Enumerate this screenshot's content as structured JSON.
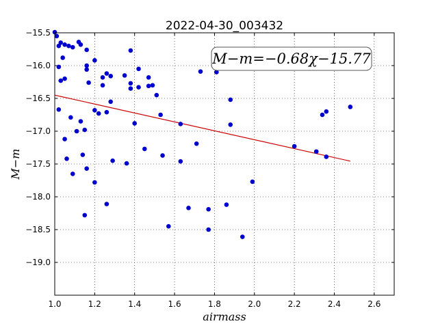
{
  "chart_data": {
    "type": "scatter",
    "title": "2022-04-30_003432",
    "xlabel": "airmass",
    "ylabel": "M−m",
    "xlim": [
      1.0,
      2.7
    ],
    "ylim": [
      -15.5,
      -19.5
    ],
    "y_inverted": true,
    "grid": true,
    "x_ticks": [
      "1.0",
      "1.2",
      "1.4",
      "1.6",
      "1.8",
      "2.0",
      "2.2",
      "2.4",
      "2.6"
    ],
    "y_ticks": [
      "−15.5",
      "−16.0",
      "−16.5",
      "−17.0",
      "−17.5",
      "−18.0",
      "−18.5",
      "−19.0"
    ],
    "annotation": "M−m=−0.68χ−15.77",
    "colors": {
      "points": "#0000cc",
      "fit": "#cc0000"
    },
    "fit_line": {
      "slope": -0.68,
      "intercept": -15.77,
      "x_range": [
        1.0,
        2.48
      ]
    },
    "points": [
      {
        "x": 1.0,
        "y": -15.49
      },
      {
        "x": 1.01,
        "y": -15.55
      },
      {
        "x": 1.02,
        "y": -15.7
      },
      {
        "x": 1.02,
        "y": -16.02
      },
      {
        "x": 1.03,
        "y": -15.65
      },
      {
        "x": 1.05,
        "y": -15.68
      },
      {
        "x": 1.07,
        "y": -15.7
      },
      {
        "x": 1.09,
        "y": -15.72
      },
      {
        "x": 1.12,
        "y": -15.64
      },
      {
        "x": 1.13,
        "y": -15.68
      },
      {
        "x": 1.16,
        "y": -15.76
      },
      {
        "x": 1.04,
        "y": -15.88
      },
      {
        "x": 1.03,
        "y": -16.23
      },
      {
        "x": 1.05,
        "y": -16.2
      },
      {
        "x": 1.02,
        "y": -16.67
      },
      {
        "x": 1.08,
        "y": -16.79
      },
      {
        "x": 1.05,
        "y": -17.12
      },
      {
        "x": 1.06,
        "y": -17.42
      },
      {
        "x": 1.09,
        "y": -17.65
      },
      {
        "x": 1.11,
        "y": -17.0
      },
      {
        "x": 1.13,
        "y": -16.85
      },
      {
        "x": 1.15,
        "y": -16.98
      },
      {
        "x": 1.14,
        "y": -17.36
      },
      {
        "x": 1.16,
        "y": -17.57
      },
      {
        "x": 1.15,
        "y": -18.28
      },
      {
        "x": 1.16,
        "y": -16.0
      },
      {
        "x": 1.16,
        "y": -16.06
      },
      {
        "x": 1.17,
        "y": -16.26
      },
      {
        "x": 1.2,
        "y": -15.92
      },
      {
        "x": 1.2,
        "y": -16.68
      },
      {
        "x": 1.22,
        "y": -16.73
      },
      {
        "x": 1.2,
        "y": -17.78
      },
      {
        "x": 1.24,
        "y": -16.18
      },
      {
        "x": 1.24,
        "y": -16.3
      },
      {
        "x": 1.26,
        "y": -16.12
      },
      {
        "x": 1.28,
        "y": -16.16
      },
      {
        "x": 1.26,
        "y": -16.71
      },
      {
        "x": 1.28,
        "y": -16.55
      },
      {
        "x": 1.29,
        "y": -17.45
      },
      {
        "x": 1.26,
        "y": -18.11
      },
      {
        "x": 1.35,
        "y": -16.15
      },
      {
        "x": 1.38,
        "y": -16.27
      },
      {
        "x": 1.38,
        "y": -16.35
      },
      {
        "x": 1.38,
        "y": -15.77
      },
      {
        "x": 1.42,
        "y": -16.05
      },
      {
        "x": 1.42,
        "y": -16.33
      },
      {
        "x": 1.4,
        "y": -16.88
      },
      {
        "x": 1.36,
        "y": -17.49
      },
      {
        "x": 1.47,
        "y": -16.18
      },
      {
        "x": 1.47,
        "y": -16.31
      },
      {
        "x": 1.49,
        "y": -16.3
      },
      {
        "x": 1.51,
        "y": -16.45
      },
      {
        "x": 1.45,
        "y": -17.27
      },
      {
        "x": 1.53,
        "y": -16.75
      },
      {
        "x": 1.54,
        "y": -17.37
      },
      {
        "x": 1.57,
        "y": -18.45
      },
      {
        "x": 1.63,
        "y": -16.89
      },
      {
        "x": 1.63,
        "y": -17.46
      },
      {
        "x": 1.67,
        "y": -18.17
      },
      {
        "x": 1.71,
        "y": -17.19
      },
      {
        "x": 1.73,
        "y": -16.09
      },
      {
        "x": 1.77,
        "y": -18.19
      },
      {
        "x": 1.77,
        "y": -18.5
      },
      {
        "x": 1.81,
        "y": -16.1
      },
      {
        "x": 1.86,
        "y": -18.12
      },
      {
        "x": 1.88,
        "y": -16.52
      },
      {
        "x": 1.88,
        "y": -16.9
      },
      {
        "x": 1.94,
        "y": -18.61
      },
      {
        "x": 1.99,
        "y": -17.77
      },
      {
        "x": 2.2,
        "y": -17.23
      },
      {
        "x": 2.31,
        "y": -17.31
      },
      {
        "x": 2.34,
        "y": -16.75
      },
      {
        "x": 2.36,
        "y": -16.7
      },
      {
        "x": 2.36,
        "y": -17.39
      },
      {
        "x": 2.48,
        "y": -16.63
      }
    ]
  }
}
